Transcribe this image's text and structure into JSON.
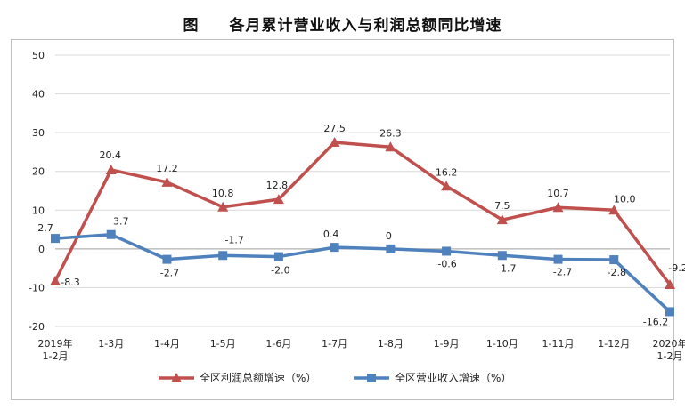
{
  "title": {
    "prefix": "图",
    "text": "各月累计营业收入与利润总额同比增速"
  },
  "chart_data": {
    "type": "line",
    "categories": [
      "2019年\n1-2月",
      "1-3月",
      "1-4月",
      "1-5月",
      "1-6月",
      "1-7月",
      "1-8月",
      "1-9月",
      "1-10月",
      "1-11月",
      "1-12月",
      "2020年\n1-2月"
    ],
    "ylim": [
      -20,
      50
    ],
    "yticks": [
      -20,
      -10,
      0,
      10,
      20,
      30,
      40,
      50
    ],
    "grid": true,
    "legend_position": "bottom",
    "series": [
      {
        "name": "全区利润总额增速（%）",
        "color": "#c0504d",
        "marker": "triangle",
        "values": [
          -8.3,
          20.4,
          17.2,
          10.8,
          12.8,
          27.5,
          26.3,
          16.2,
          7.5,
          10.7,
          10.0,
          -9.2
        ],
        "labels": [
          "-8.3",
          "20.4",
          "17.2",
          "10.8",
          "12.8",
          "27.5",
          "26.3",
          "16.2",
          "7.5",
          "10.7",
          "10.0",
          "-9.2"
        ]
      },
      {
        "name": "全区营业收入增速（%）",
        "color": "#4f81bd",
        "marker": "square",
        "values": [
          2.7,
          3.7,
          -2.7,
          -1.7,
          -2.0,
          0.4,
          0,
          -0.6,
          -1.7,
          -2.7,
          -2.8,
          -16.2
        ],
        "labels": [
          "2.7",
          "3.7",
          "-2.7",
          "-1.7",
          "-2.0",
          "0.4",
          "0",
          "-0.6",
          "-1.7",
          "-2.7",
          "-2.8",
          "-16.2"
        ]
      }
    ]
  }
}
